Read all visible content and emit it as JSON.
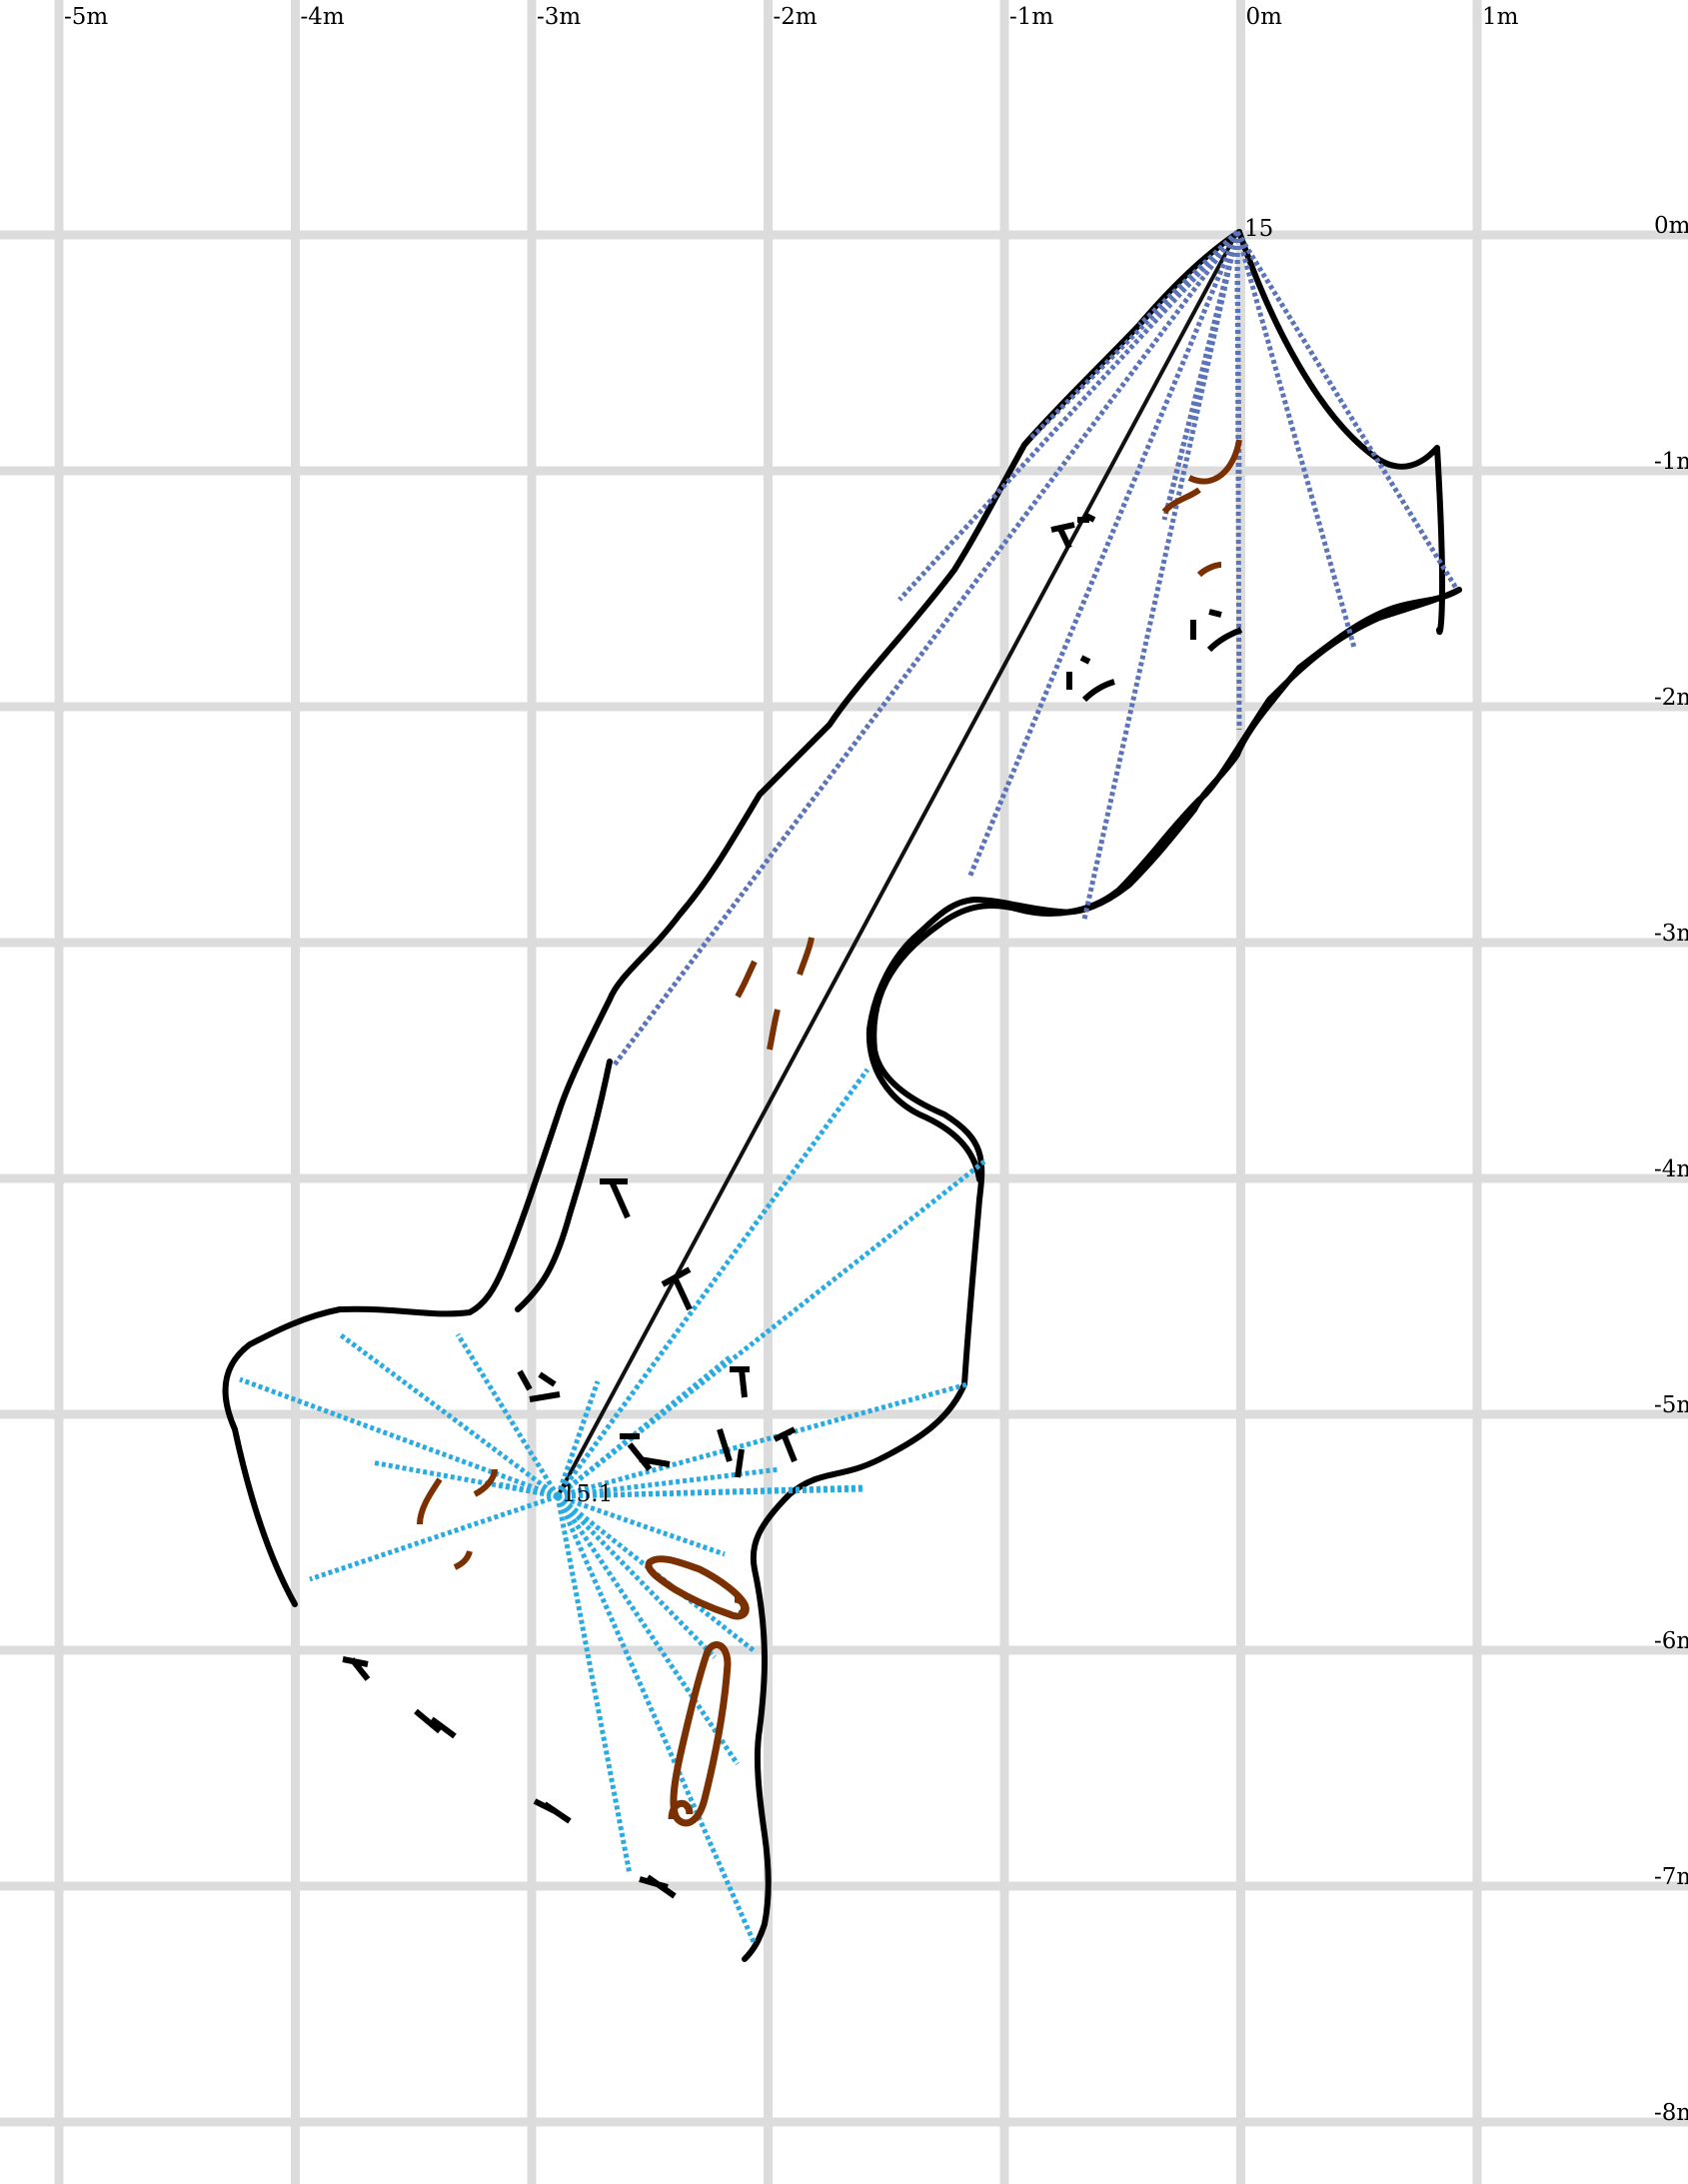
{
  "colors": {
    "grid": "#dcdcdc",
    "wall": "#000000",
    "survey_leg": "#111111",
    "splay_station_15": "#5b73b8",
    "splay_station_15_1": "#29abe2",
    "sediment": "#7a3000"
  },
  "grid": {
    "x_labels": [
      "-5m",
      "-4m",
      "-3m",
      "-2m",
      "-1m",
      "0m",
      "1m"
    ],
    "y_labels": [
      "0m",
      "-1m",
      "-2m",
      "-3m",
      "-4m",
      "-5m",
      "-6m",
      "-7m",
      "-8m"
    ]
  },
  "stations": [
    {
      "id": "15",
      "label": "15",
      "x_m": 0.0,
      "y_m": 0.0
    },
    {
      "id": "15.1",
      "label": "15.1",
      "x_m": -2.85,
      "y_m": -5.35
    }
  ]
}
